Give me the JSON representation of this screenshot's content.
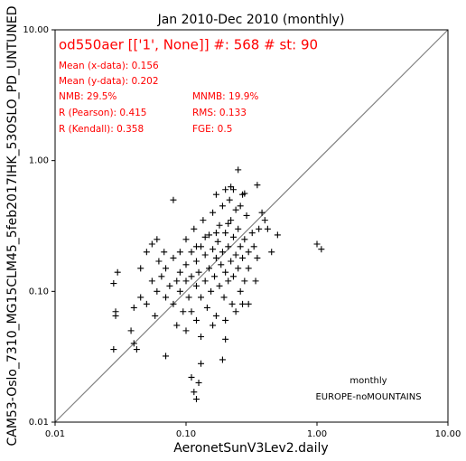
{
  "chart_data": {
    "type": "scatter",
    "title": "Jan 2010-Dec 2010 (monthly)",
    "x_label": "AeronetSunV3Lev2.daily",
    "y_label": "CAM53-Oslo_7310_MG15CLM45_5feb2017IHK_53OSLO_PD_UNTUNED",
    "annotations": [
      "od550aer [['1', None]] #: 568 # st: 90",
      "Mean (x-data): 0.156",
      "Mean (y-data): 0.202",
      "NMB: 29.5%",
      "R (Pearson): 0.415",
      "R (Kendall): 0.358",
      "MNMB: 19.9%",
      "RMS: 0.133",
      "FGE: 0.5"
    ],
    "annotations_right": [
      "monthly",
      "EUROPE-noMOUNTAINS"
    ],
    "log_x": true,
    "log_y": true,
    "xlim": [
      0.01,
      10
    ],
    "ylim": [
      0.01,
      10
    ],
    "xticks": [
      {
        "value": 0.01,
        "label": "0.01"
      },
      {
        "value": 0.1,
        "label": "0.10"
      },
      {
        "value": 1,
        "label": "1.00"
      },
      {
        "value": 10,
        "label": "10.00"
      }
    ],
    "yticks": [
      {
        "value": 0.01,
        "label": "0.01"
      },
      {
        "value": 0.1,
        "label": "0.10"
      },
      {
        "value": 1,
        "label": "1.00"
      },
      {
        "value": 10,
        "label": "10.00"
      }
    ],
    "color": "#000000",
    "annotation_color": "#ff0000",
    "x": [
      0.028,
      0.029,
      0.029,
      0.028,
      0.038,
      0.04,
      0.042,
      0.045,
      0.05,
      0.055,
      0.06,
      0.07,
      0.08,
      0.09,
      0.1,
      0.11,
      0.115,
      0.12,
      0.125,
      0.13,
      0.19,
      0.2,
      0.25,
      0.28,
      0.3,
      0.35,
      0.38,
      0.4,
      0.42,
      0.45,
      0.5,
      1.0,
      1.08,
      0.22,
      0.2,
      0.17,
      0.03,
      0.06,
      0.065,
      0.07,
      0.07,
      0.075,
      0.08,
      0.08,
      0.085,
      0.09,
      0.09,
      0.095,
      0.1,
      0.1,
      0.105,
      0.11,
      0.11,
      0.115,
      0.12,
      0.12,
      0.12,
      0.125,
      0.13,
      0.13,
      0.135,
      0.14,
      0.14,
      0.145,
      0.15,
      0.15,
      0.155,
      0.16,
      0.16,
      0.165,
      0.17,
      0.17,
      0.175,
      0.18,
      0.18,
      0.185,
      0.19,
      0.19,
      0.195,
      0.2,
      0.2,
      0.21,
      0.21,
      0.215,
      0.22,
      0.22,
      0.225,
      0.23,
      0.23,
      0.24,
      0.24,
      0.25,
      0.25,
      0.26,
      0.26,
      0.27,
      0.27,
      0.28,
      0.28,
      0.29,
      0.3,
      0.3,
      0.32,
      0.33,
      0.34,
      0.35,
      0.36,
      0.05,
      0.055,
      0.045,
      0.04,
      0.058,
      0.062,
      0.068,
      0.085,
      0.1,
      0.11,
      0.13,
      0.16,
      0.2,
      0.24,
      0.27,
      0.21,
      0.17,
      0.14,
      0.12,
      0.23,
      0.26
    ],
    "y": [
      0.036,
      0.065,
      0.07,
      0.115,
      0.05,
      0.04,
      0.036,
      0.15,
      0.2,
      0.23,
      0.25,
      0.032,
      0.5,
      0.2,
      0.12,
      0.022,
      0.017,
      0.015,
      0.02,
      0.028,
      0.03,
      0.043,
      0.85,
      0.56,
      0.08,
      0.65,
      0.4,
      0.35,
      0.3,
      0.2,
      0.27,
      0.23,
      0.21,
      0.63,
      0.6,
      0.55,
      0.14,
      0.1,
      0.13,
      0.09,
      0.15,
      0.11,
      0.08,
      0.18,
      0.12,
      0.1,
      0.14,
      0.07,
      0.16,
      0.25,
      0.09,
      0.13,
      0.2,
      0.3,
      0.06,
      0.11,
      0.17,
      0.14,
      0.22,
      0.09,
      0.35,
      0.12,
      0.19,
      0.075,
      0.27,
      0.15,
      0.1,
      0.21,
      0.4,
      0.13,
      0.065,
      0.18,
      0.24,
      0.11,
      0.32,
      0.16,
      0.2,
      0.45,
      0.09,
      0.14,
      0.28,
      0.22,
      0.12,
      0.5,
      0.17,
      0.35,
      0.08,
      0.26,
      0.13,
      0.19,
      0.42,
      0.15,
      0.3,
      0.1,
      0.22,
      0.55,
      0.18,
      0.25,
      0.12,
      0.38,
      0.2,
      0.15,
      0.28,
      0.22,
      0.12,
      0.18,
      0.3,
      0.08,
      0.12,
      0.09,
      0.075,
      0.065,
      0.17,
      0.2,
      0.055,
      0.05,
      0.07,
      0.045,
      0.055,
      0.06,
      0.07,
      0.08,
      0.33,
      0.28,
      0.26,
      0.22,
      0.6,
      0.45
    ]
  }
}
